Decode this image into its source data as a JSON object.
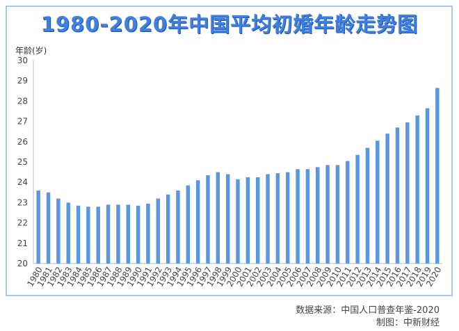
{
  "title": "1980-2020年中国平均初婚年龄走势图",
  "source_line": "数据来源：中国人口普查年鉴-2020",
  "credit_line": "制图：中新财经",
  "colors": {
    "bar": "#5b97e0",
    "title": "#3f7fe0",
    "frame": "#a9c6ec"
  },
  "chart_data": {
    "type": "bar",
    "ylabel": "年龄(岁)",
    "ylim": [
      20,
      30
    ],
    "yticks": [
      "20",
      "21",
      "22",
      "23",
      "24",
      "25",
      "26",
      "27",
      "28",
      "29",
      "30"
    ],
    "grid": false,
    "categories": [
      "1980",
      "1981",
      "1982",
      "1983",
      "1984",
      "1985",
      "1986",
      "1987",
      "1988",
      "1989",
      "1990",
      "1991",
      "1992",
      "1993",
      "1994",
      "1995",
      "1996",
      "1997",
      "1998",
      "1999",
      "2000",
      "2001",
      "2002",
      "2003",
      "2004",
      "2005",
      "2006",
      "2007",
      "2008",
      "2009",
      "2010",
      "2011",
      "2012",
      "2013",
      "2014",
      "2015",
      "2016",
      "2017",
      "2018",
      "2019",
      "2020"
    ],
    "values": [
      23.6,
      23.5,
      23.2,
      23.0,
      22.85,
      22.8,
      22.8,
      22.9,
      22.9,
      22.9,
      22.85,
      22.95,
      23.2,
      23.4,
      23.6,
      23.85,
      24.1,
      24.35,
      24.5,
      24.4,
      24.15,
      24.25,
      24.25,
      24.4,
      24.45,
      24.5,
      24.65,
      24.65,
      24.75,
      24.85,
      24.85,
      25.05,
      25.35,
      25.7,
      26.05,
      26.4,
      26.7,
      26.95,
      27.3,
      27.65,
      28.65
    ]
  }
}
